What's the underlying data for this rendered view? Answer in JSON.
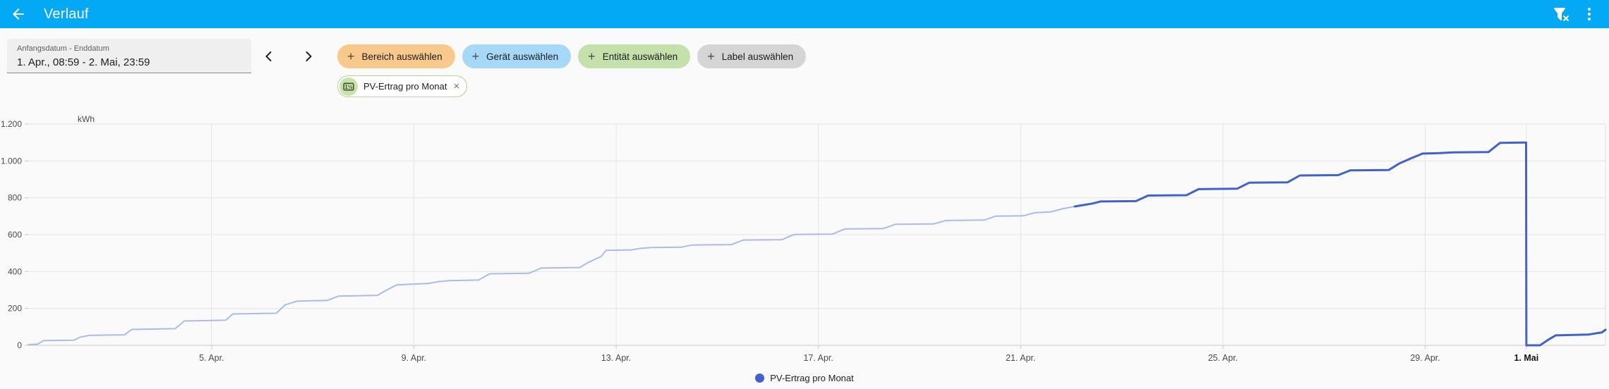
{
  "header": {
    "title": "Verlauf"
  },
  "icons": {
    "counter_glyph": "1½",
    "add_glyph": "+",
    "remove_glyph": "×"
  },
  "toolbar": {
    "date_field": {
      "label": "Anfangsdatum - Enddatum",
      "value": "1. Apr., 08:59 - 2. Mai, 23:59"
    },
    "filter_chips": [
      {
        "label": "Bereich auswählen",
        "color": "#f8c98a"
      },
      {
        "label": "Gerät auswählen",
        "color": "#a6d9f7"
      },
      {
        "label": "Entität auswählen",
        "color": "#c5e1ab"
      },
      {
        "label": "Label auswählen",
        "color": "#d5d5d5"
      }
    ],
    "selected_entity_chip": {
      "label": "PV-Ertrag pro Monat"
    }
  },
  "chart_data": {
    "type": "line",
    "unit": "kWh",
    "ylim": [
      0,
      1200
    ],
    "yticks": [
      {
        "v": 0,
        "label": "0"
      },
      {
        "v": 200,
        "label": "200"
      },
      {
        "v": 400,
        "label": "400"
      },
      {
        "v": 600,
        "label": "600"
      },
      {
        "v": 800,
        "label": "800"
      },
      {
        "v": 1000,
        "label": "1.000"
      },
      {
        "v": 1200,
        "label": "1.200"
      }
    ],
    "x_unit": "days_since_1_apr_00:00",
    "xlim_days": [
      0.374,
      31.565
    ],
    "xticks": [
      {
        "t": 4,
        "label": "5. Apr."
      },
      {
        "t": 8,
        "label": "9. Apr."
      },
      {
        "t": 12,
        "label": "13. Apr."
      },
      {
        "t": 16,
        "label": "17. Apr."
      },
      {
        "t": 20,
        "label": "21. Apr."
      },
      {
        "t": 24,
        "label": "25. Apr."
      },
      {
        "t": 28,
        "label": "29. Apr."
      },
      {
        "t": 30,
        "label": "1. Mai",
        "bold": true
      }
    ],
    "grid": true,
    "legend_position": "bottom",
    "series": [
      {
        "name": "PV-Ertrag pro Monat",
        "color": "#4362c8",
        "segments": [
          {
            "style": "long-term-statistics",
            "color": "#a9bde6",
            "width": 2,
            "points": [
              [
                0.374,
                4
              ],
              [
                0.56,
                6
              ],
              [
                0.68,
                26
              ],
              [
                1.28,
                28
              ],
              [
                1.4,
                44
              ],
              [
                1.58,
                54
              ],
              [
                2.28,
                57
              ],
              [
                2.42,
                86
              ],
              [
                3.28,
                90
              ],
              [
                3.46,
                132
              ],
              [
                4.28,
                136
              ],
              [
                4.42,
                170
              ],
              [
                5.28,
                174
              ],
              [
                5.46,
                220
              ],
              [
                5.7,
                240
              ],
              [
                6.28,
                243
              ],
              [
                6.52,
                267
              ],
              [
                7.28,
                271
              ],
              [
                7.42,
                293
              ],
              [
                7.66,
                328
              ],
              [
                8.28,
                335
              ],
              [
                8.48,
                345
              ],
              [
                8.7,
                351
              ],
              [
                9.28,
                354
              ],
              [
                9.5,
                388
              ],
              [
                10.28,
                391
              ],
              [
                10.52,
                419
              ],
              [
                11.28,
                422
              ],
              [
                11.45,
                450
              ],
              [
                11.7,
                481
              ],
              [
                11.8,
                515
              ],
              [
                12.3,
                517
              ],
              [
                12.46,
                525
              ],
              [
                12.7,
                530
              ],
              [
                13.28,
                532
              ],
              [
                13.5,
                544
              ],
              [
                14.28,
                546
              ],
              [
                14.52,
                571
              ],
              [
                15.28,
                573
              ],
              [
                15.52,
                601
              ],
              [
                16.28,
                603
              ],
              [
                16.52,
                631
              ],
              [
                17.28,
                633
              ],
              [
                17.52,
                656
              ],
              [
                18.28,
                658
              ],
              [
                18.52,
                677
              ],
              [
                19.28,
                679
              ],
              [
                19.5,
                700
              ],
              [
                20.05,
                702
              ],
              [
                20.28,
                719
              ],
              [
                20.6,
                724
              ],
              [
                20.82,
                740
              ],
              [
                21.07,
                753
              ]
            ]
          },
          {
            "style": "recent-history",
            "color": "#4362c8",
            "width": 3,
            "points": [
              [
                21.07,
                753
              ],
              [
                21.42,
                769
              ],
              [
                21.58,
                780
              ],
              [
                22.28,
                782
              ],
              [
                22.52,
                812
              ],
              [
                23.28,
                814
              ],
              [
                23.52,
                847
              ],
              [
                24.28,
                849
              ],
              [
                24.52,
                882
              ],
              [
                25.28,
                884
              ],
              [
                25.52,
                921
              ],
              [
                26.28,
                923
              ],
              [
                26.52,
                949
              ],
              [
                27.28,
                951
              ],
              [
                27.48,
                985
              ],
              [
                27.7,
                1012
              ],
              [
                27.95,
                1040
              ],
              [
                28.28,
                1042
              ],
              [
                28.55,
                1046
              ],
              [
                29.25,
                1048
              ],
              [
                29.48,
                1098
              ],
              [
                29.995,
                1100
              ],
              [
                30.0,
                0
              ],
              [
                30.27,
                0
              ],
              [
                30.42,
                28
              ],
              [
                30.58,
                54
              ],
              [
                31.22,
                58
              ],
              [
                31.42,
                67
              ],
              [
                31.49,
                69
              ],
              [
                31.565,
                84
              ]
            ]
          }
        ]
      }
    ],
    "legend": [
      {
        "label": "PV-Ertrag pro Monat",
        "color": "#4362c8"
      }
    ]
  }
}
